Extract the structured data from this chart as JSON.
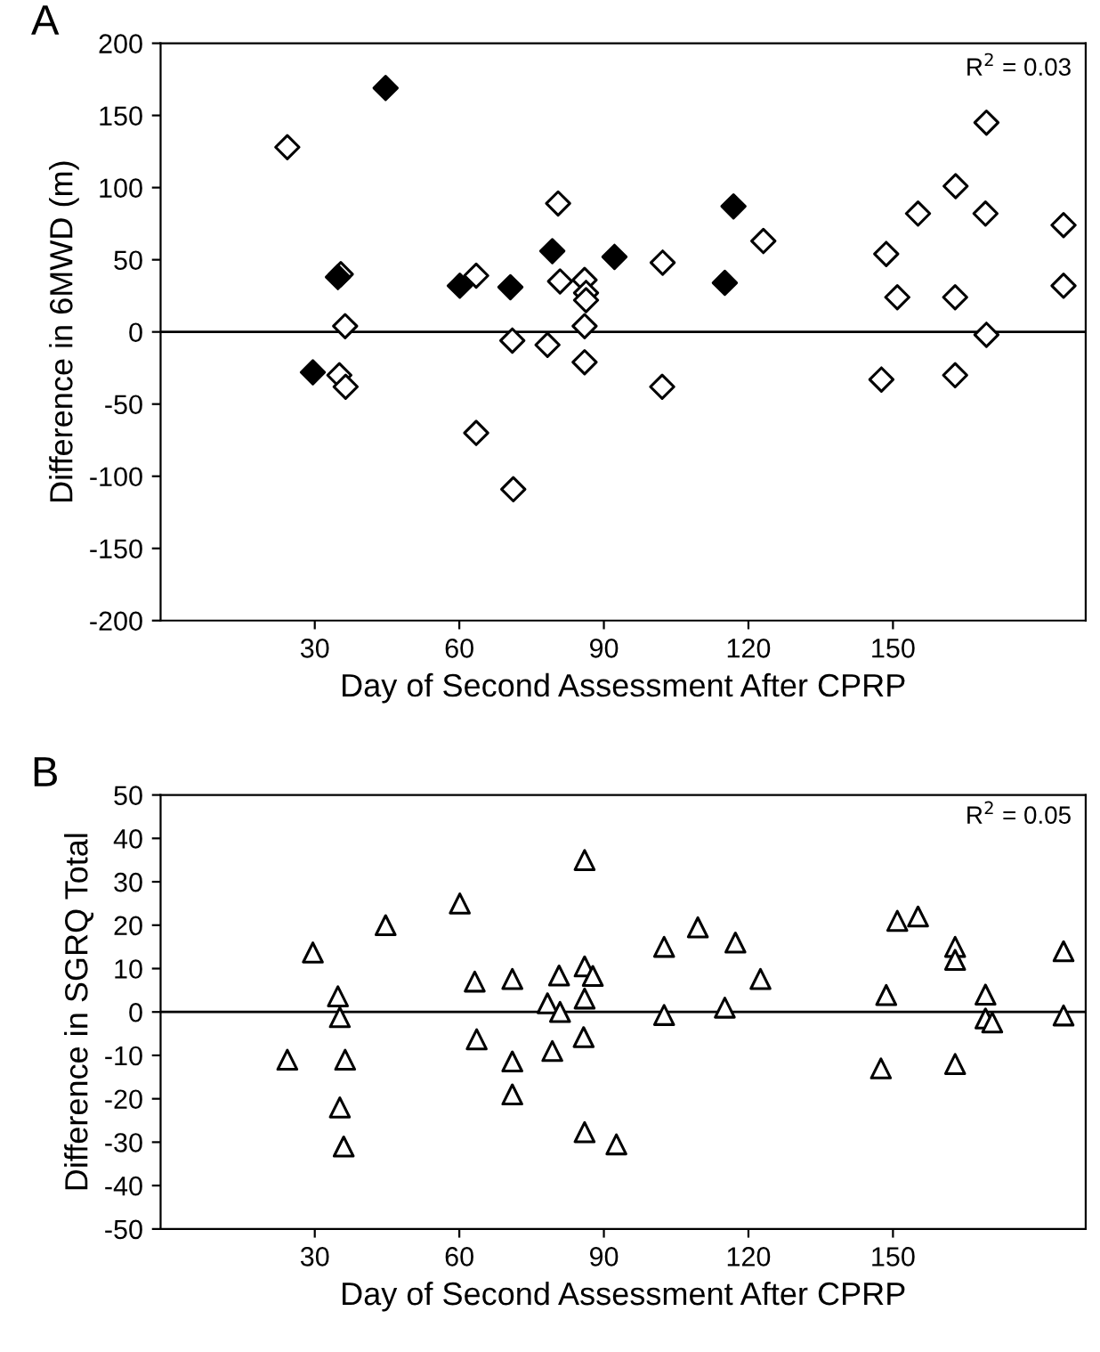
{
  "chart_data": [
    {
      "type": "scatter",
      "title": "A",
      "xlabel": "Day of Second Assessment After CPRP",
      "ylabel": "Difference in 6MWD (m)",
      "annotations": [
        "R$^{2}$ = 0.03"
      ],
      "xlim": [
        -2,
        190
      ],
      "xticks": [
        30,
        60,
        90,
        120,
        150
      ],
      "ylim": [
        -200,
        200
      ],
      "yticks": [
        -200,
        -150,
        -100,
        -50,
        0,
        50,
        100,
        150,
        200
      ],
      "grid": false,
      "legend": false,
      "marker": "diamond",
      "ref_lines": [
        {
          "axis": "y",
          "value": 0,
          "color": "#000000"
        }
      ],
      "series": [
        {
          "color": "#000000",
          "x": [
            44.7,
            29.6,
            34.8,
            60.1,
            70.6,
            79.3,
            92.2,
            116.9,
            115.1
          ],
          "values": [
            169,
            -28,
            38,
            32,
            31,
            56,
            52,
            87,
            34
          ]
        },
        {
          "color": "#ffffff",
          "x": [
            24.3,
            35.4,
            36.3,
            35.1,
            36.4,
            63.5,
            63.5,
            71.0,
            71.2,
            78.3,
            80.5,
            80.9,
            86.0,
            86.3,
            86.3,
            86.0,
            86.0,
            102.2,
            102.1,
            123.1,
            148.6,
            147.6,
            150.9,
            155.2,
            163.0,
            162.9,
            162.9,
            169.4,
            169.2,
            169.4,
            185.4,
            185.4
          ],
          "values": [
            128,
            40,
            4,
            -30,
            -38,
            39,
            -70,
            -6,
            -109,
            -9,
            89,
            35,
            36,
            27,
            22,
            4,
            -21,
            48,
            -38,
            63,
            54,
            -33,
            24,
            82,
            101,
            24,
            -30,
            145,
            82,
            -2,
            74,
            32
          ]
        }
      ]
    },
    {
      "type": "scatter",
      "title": "B",
      "xlabel": "Day of Second Assessment After CPRP",
      "ylabel": "Difference in SGRQ Total",
      "annotations": [
        "R$^{2}$ = 0.05"
      ],
      "xlim": [
        -2,
        190
      ],
      "xticks": [
        30,
        60,
        90,
        120,
        150
      ],
      "ylim": [
        -50,
        50
      ],
      "yticks": [
        -50,
        -40,
        -30,
        -20,
        -10,
        0,
        10,
        20,
        30,
        40,
        50
      ],
      "grid": false,
      "legend": false,
      "marker": "triangle",
      "ref_lines": [
        {
          "axis": "y",
          "value": 0,
          "color": "#000000"
        }
      ],
      "series": [
        {
          "color": "#ffffff",
          "x": [
            24.3,
            29.6,
            44.7,
            34.8,
            35.2,
            36.3,
            35.2,
            36.0,
            60.1,
            63.2,
            63.6,
            71.0,
            71.0,
            71.0,
            78.3,
            80.7,
            80.9,
            79.3,
            86.0,
            86.0,
            87.7,
            86.0,
            85.8,
            86.0,
            92.6,
            102.5,
            102.5,
            109.5,
            115.1,
            117.3,
            122.5,
            148.6,
            147.5,
            150.9,
            155.2,
            162.9,
            162.9,
            162.9,
            169.2,
            169.2,
            170.6,
            185.4,
            185.4
          ],
          "values": [
            -11,
            13.7,
            20,
            3.6,
            -1.2,
            -11,
            -22,
            -31,
            25,
            7,
            -6.3,
            7.6,
            -11.4,
            -19,
            2,
            8.4,
            0,
            -9,
            35,
            10.5,
            8.3,
            3.1,
            -5.8,
            -27.7,
            -30.5,
            15,
            -0.7,
            19.5,
            1,
            16,
            7.6,
            3.9,
            -13,
            21,
            22,
            15,
            12,
            -12,
            4,
            -1.5,
            -2.4,
            14,
            -0.8
          ]
        }
      ]
    }
  ]
}
